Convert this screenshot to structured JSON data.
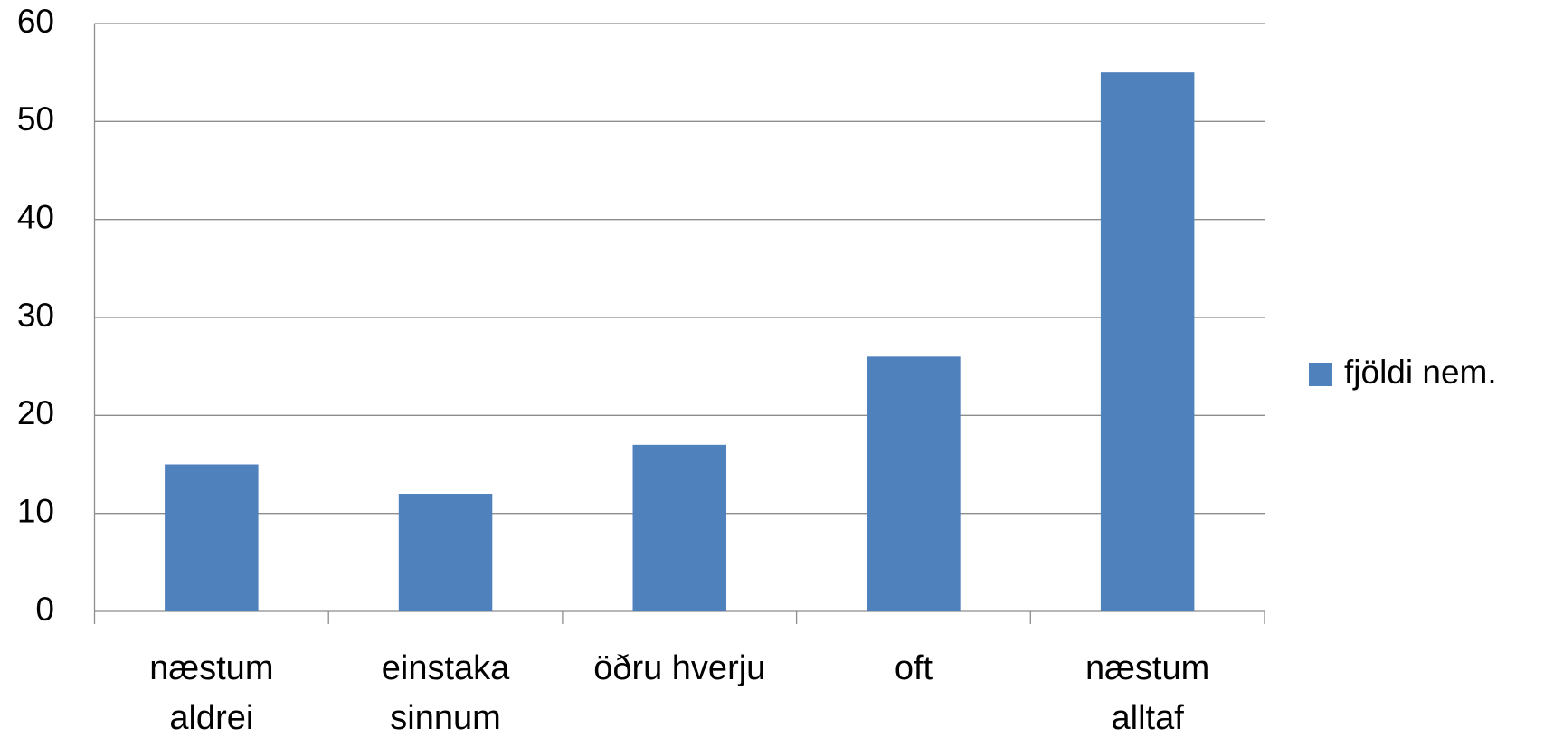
{
  "chart_data": {
    "type": "bar",
    "categories": [
      "næstum aldrei",
      "einstaka sinnum",
      "öðru hverju",
      "oft",
      "næstum alltaf"
    ],
    "series": [
      {
        "name": "fjöldi nem.",
        "color": "#4f81bd",
        "values": [
          15,
          12,
          17,
          26,
          55
        ]
      }
    ],
    "ylim": [
      0,
      60
    ],
    "yticks": [
      0,
      10,
      20,
      30,
      40,
      50,
      60
    ],
    "grid": true,
    "legend": "right"
  }
}
